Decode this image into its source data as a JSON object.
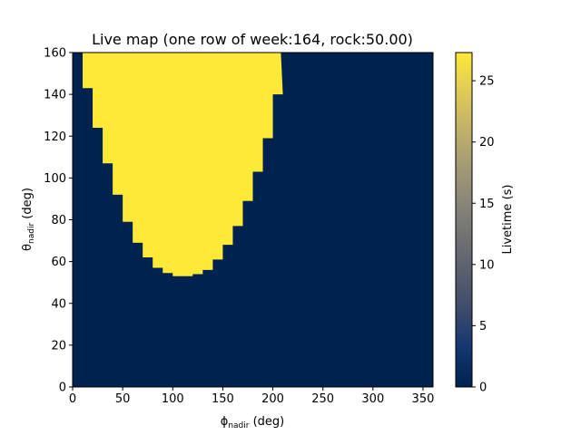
{
  "chart_data": {
    "type": "heatmap",
    "title": "Live map (one row of week:164, rock:50.00)",
    "xlabel": {
      "symbol": "ϕ",
      "sub": "nadir",
      "rest": " (deg)"
    },
    "ylabel": {
      "symbol": "θ",
      "sub": "nadir",
      "rest": " (deg)"
    },
    "xlim": [
      0,
      360
    ],
    "ylim": [
      0,
      160
    ],
    "xticks": [
      "0",
      "50",
      "100",
      "150",
      "200",
      "250",
      "300",
      "350"
    ],
    "yticks": [
      "0",
      "20",
      "40",
      "60",
      "80",
      "100",
      "120",
      "140",
      "160"
    ],
    "colorbar": {
      "label": "Livetime (s)",
      "range": [
        0,
        27.3
      ],
      "ticks": [
        "0",
        "5",
        "10",
        "15",
        "20",
        "25"
      ],
      "colormap": "cividis",
      "colors": [
        "#00224e",
        "#123570",
        "#3b496c",
        "#575d6d",
        "#707173",
        "#8a8678",
        "#a59c74",
        "#c3b369",
        "#e1cc55",
        "#fee838"
      ]
    },
    "grid": false,
    "background_value": 0,
    "region_value": 27.3,
    "region_boundary": [
      {
        "phi": 5,
        "theta_min": 160
      },
      {
        "phi": 15,
        "theta_min": 143
      },
      {
        "phi": 25,
        "theta_min": 124
      },
      {
        "phi": 35,
        "theta_min": 107
      },
      {
        "phi": 45,
        "theta_min": 92
      },
      {
        "phi": 55,
        "theta_min": 79
      },
      {
        "phi": 65,
        "theta_min": 69
      },
      {
        "phi": 75,
        "theta_min": 62
      },
      {
        "phi": 85,
        "theta_min": 57
      },
      {
        "phi": 95,
        "theta_min": 54.5
      },
      {
        "phi": 105,
        "theta_min": 53
      },
      {
        "phi": 115,
        "theta_min": 53
      },
      {
        "phi": 125,
        "theta_min": 54
      },
      {
        "phi": 135,
        "theta_min": 56
      },
      {
        "phi": 145,
        "theta_min": 61
      },
      {
        "phi": 155,
        "theta_min": 68
      },
      {
        "phi": 165,
        "theta_min": 77
      },
      {
        "phi": 175,
        "theta_min": 89
      },
      {
        "phi": 185,
        "theta_min": 103
      },
      {
        "phi": 195,
        "theta_min": 119
      },
      {
        "phi": 205,
        "theta_min": 140
      },
      {
        "phi": 213,
        "theta_min": 160
      }
    ]
  }
}
